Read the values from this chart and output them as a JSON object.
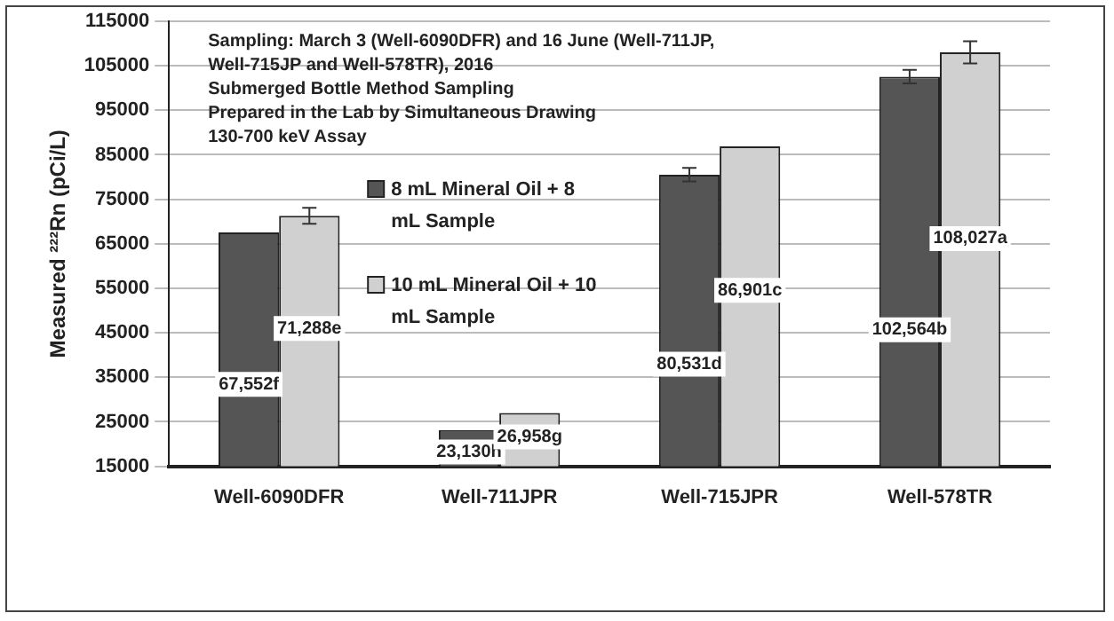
{
  "chart_data": {
    "type": "bar",
    "ylabel": "Measured ²²²Rn (pCi/L)",
    "categories": [
      "Well-6090DFR",
      "Well-711JPR",
      "Well-715JPR",
      "Well-578TR"
    ],
    "series": [
      {
        "name": "8 mL Mineral Oil + 8 mL Sample",
        "color": "#555555",
        "values": [
          67552,
          23130,
          80531,
          102564
        ],
        "errors": [
          null,
          null,
          1500,
          1500
        ],
        "value_labels": [
          "67,552f",
          "23,130h",
          "80,531d",
          "102,564b"
        ]
      },
      {
        "name": "10 mL Mineral Oil + 10 mL Sample",
        "color": "#d0d0d0",
        "values": [
          71288,
          26958,
          86901,
          108027
        ],
        "errors": [
          1800,
          null,
          null,
          2500
        ],
        "value_labels": [
          "71,288e",
          "26,958g",
          "86,901c",
          "108,027a"
        ]
      }
    ],
    "ylim": [
      15000,
      115000
    ],
    "yticks": [
      15000,
      25000,
      35000,
      45000,
      55000,
      65000,
      75000,
      85000,
      95000,
      105000,
      115000
    ],
    "grid": "y",
    "legend": "center",
    "annotations": [
      "Sampling: March 3 (Well-6090DFR) and 16 June (Well-711JP, Well-715JP and Well-578TR), 2016",
      "Submerged Bottle Method Sampling",
      "Prepared in the Lab by Simultaneous Drawing",
      "130-700 keV Assay"
    ]
  }
}
